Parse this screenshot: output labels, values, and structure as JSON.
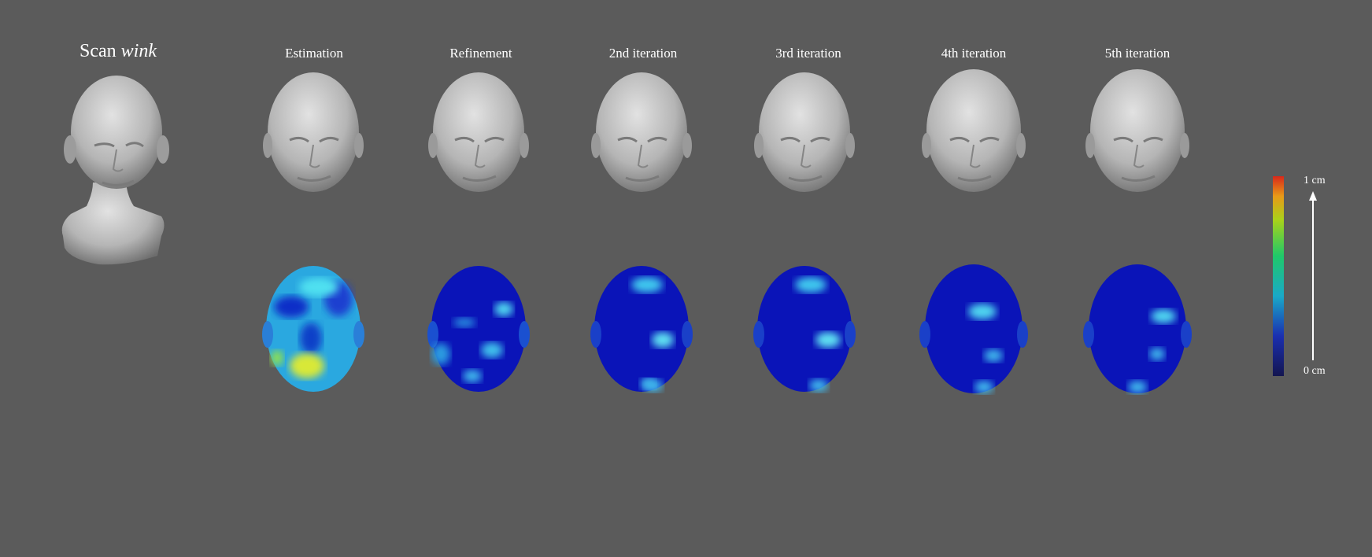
{
  "scan_title": {
    "prefix": "Scan",
    "name": "wink"
  },
  "columns": [
    {
      "label": "Estimation",
      "error_level": 0.9
    },
    {
      "label": "Refinement",
      "error_level": 0.3
    },
    {
      "label": "2nd iteration",
      "error_level": 0.2
    },
    {
      "label": "3rd iteration",
      "error_level": 0.2
    },
    {
      "label": "4th iteration",
      "error_level": 0.15
    },
    {
      "label": "5th iteration",
      "error_level": 0.15
    }
  ],
  "colorbar": {
    "max_label": "1 cm",
    "min_label": "0 cm",
    "colormap": "jet"
  },
  "colors": {
    "background": "#5b5b5b",
    "mesh": "#b9b9b9",
    "heat_low": "#0a12a8",
    "heat_mid": "#3fd6f0",
    "heat_high": "#e8e83a"
  }
}
